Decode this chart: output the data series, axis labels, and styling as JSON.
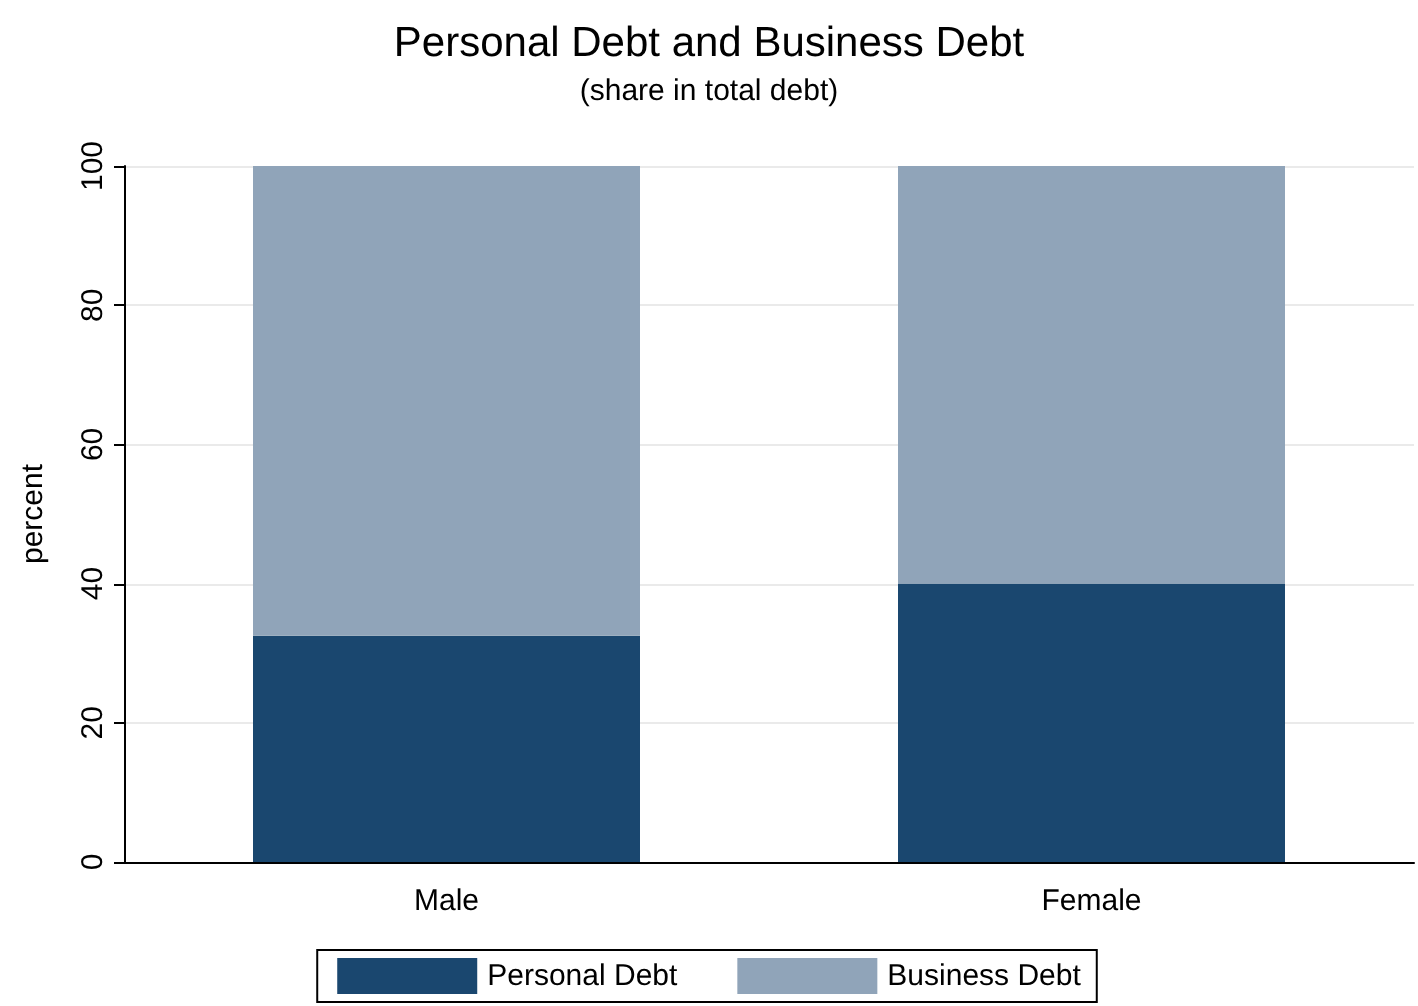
{
  "chart_data": {
    "type": "bar",
    "title": "Personal Debt and Business Debt",
    "subtitle": "(share in total debt)",
    "ylabel": "percent",
    "categories": [
      "Male",
      "Female"
    ],
    "stacked": true,
    "series": [
      {
        "name": "Personal Debt",
        "color": "#1a476f",
        "values": [
          32.5,
          40
        ]
      },
      {
        "name": "Business Debt",
        "color": "#90a4b9",
        "values": [
          67.5,
          60
        ]
      }
    ],
    "ylim": [
      0,
      100
    ],
    "yticks": [
      0,
      20,
      40,
      60,
      80,
      100
    ],
    "grid": "y",
    "legend": "bottom"
  }
}
